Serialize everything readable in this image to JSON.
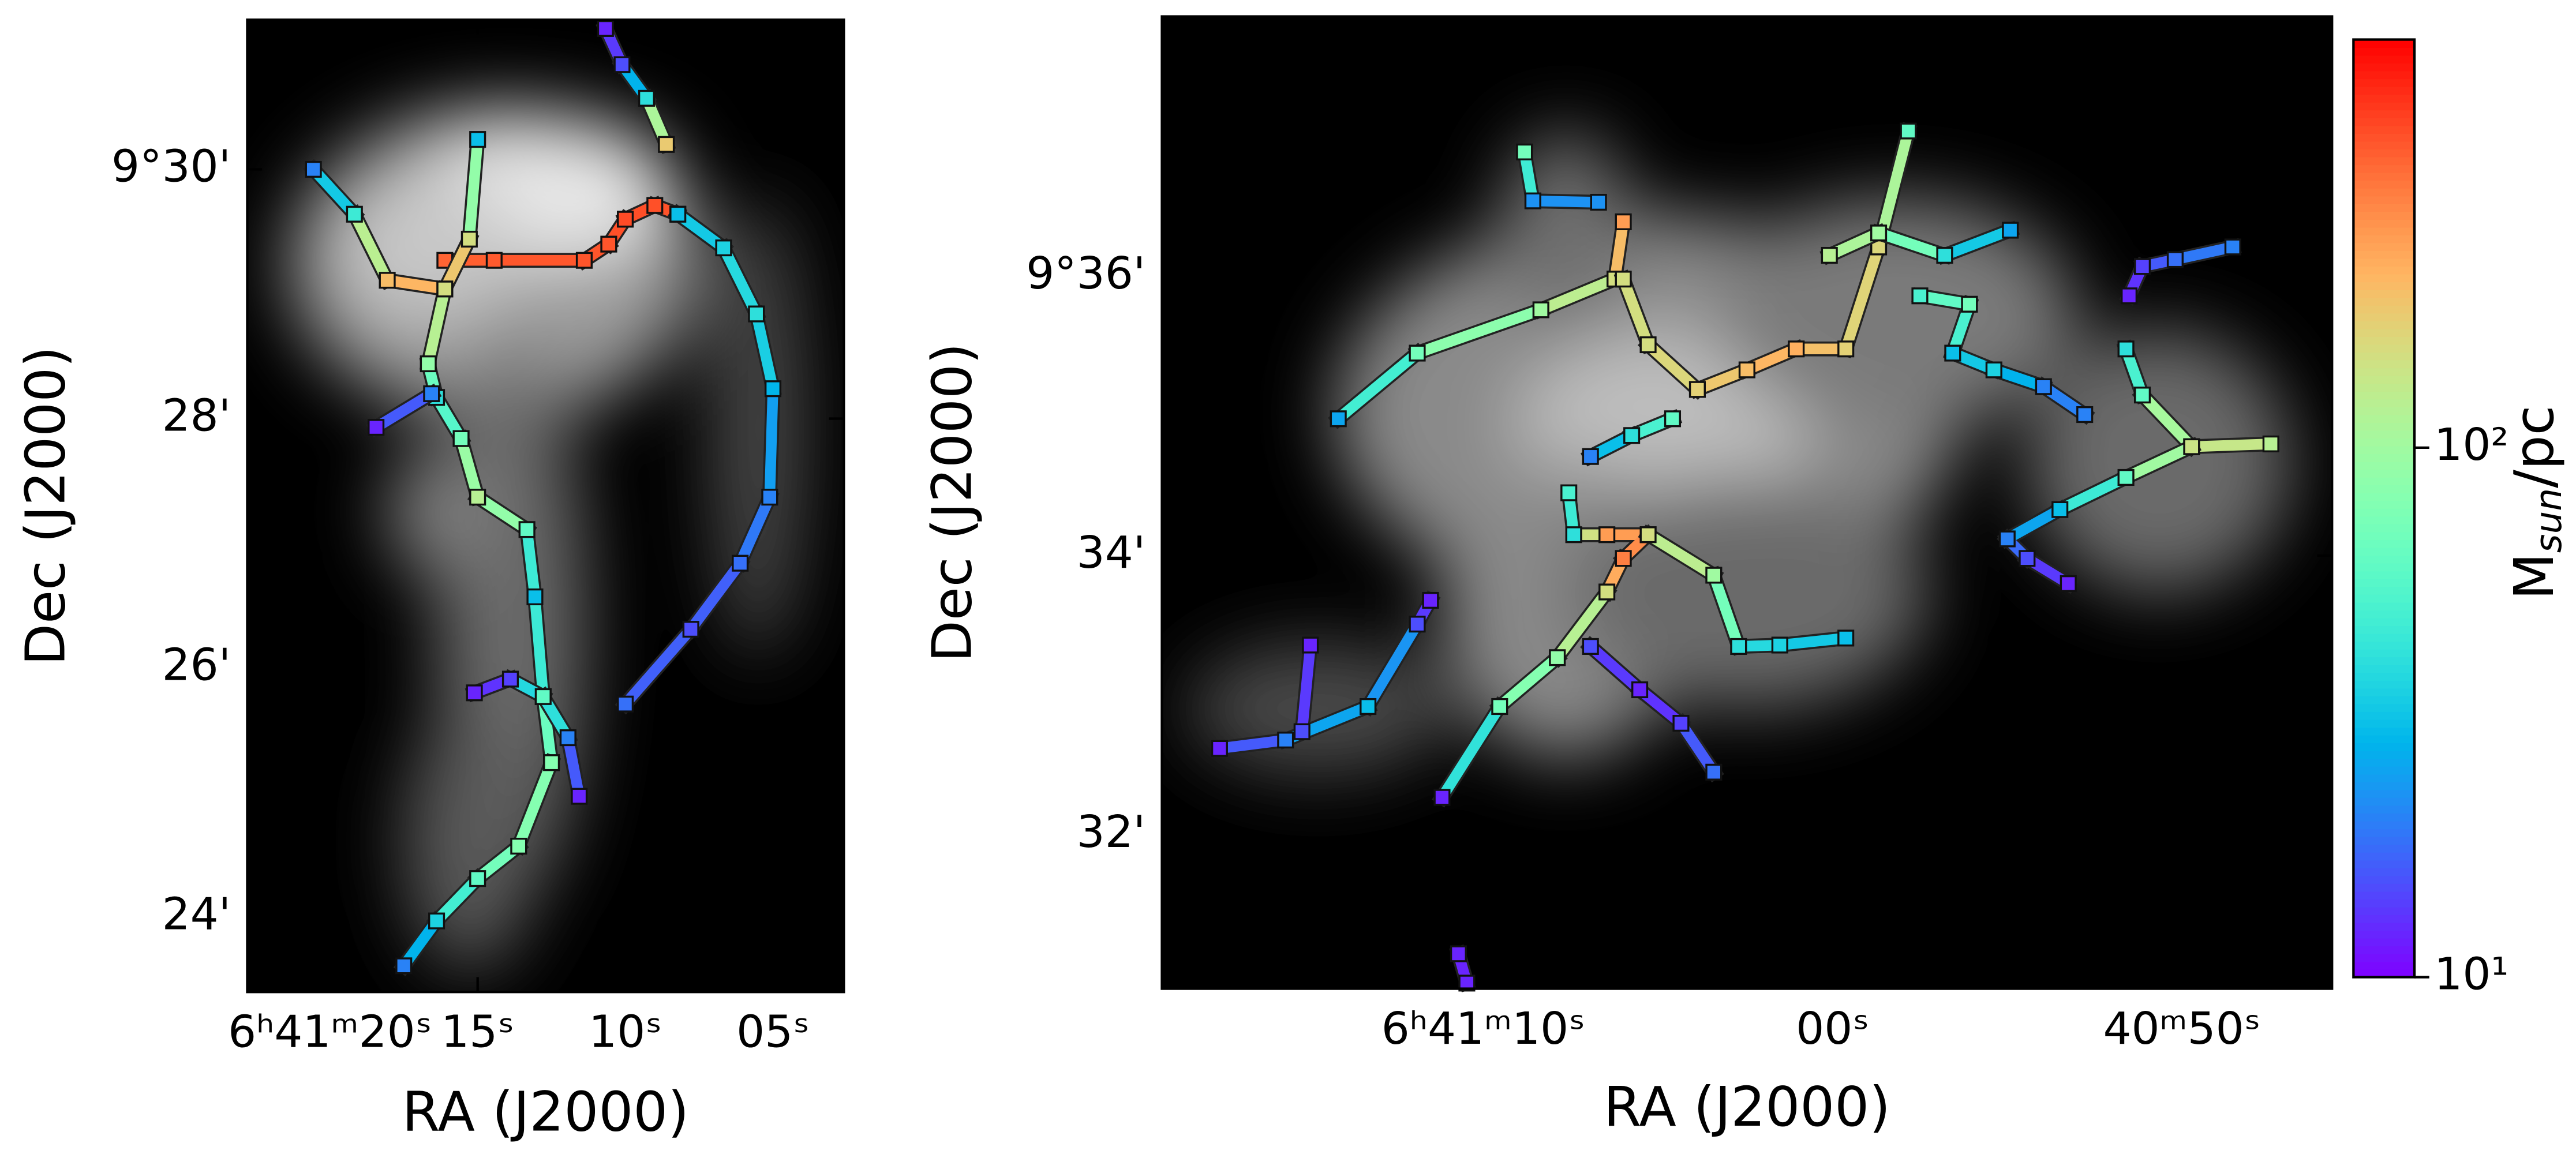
{
  "chart_data": [
    {
      "type": "scatter",
      "xlabel": "RA (J2000)",
      "ylabel": "Dec (J2000)",
      "xlim": [
        22.8,
        2.6
      ],
      "ylim": [
        23.4,
        31.2
      ],
      "xticks": [
        {
          "value": 20,
          "label": "6ʰ41ᵐ20ˢ"
        },
        {
          "value": 15,
          "label": "15ˢ"
        },
        {
          "value": 10,
          "label": "10ˢ"
        },
        {
          "value": 5,
          "label": "05ˢ"
        }
      ],
      "yticks": [
        {
          "value": 30,
          "label": "9°30'"
        },
        {
          "value": 28,
          "label": "28'"
        },
        {
          "value": 26,
          "label": "26'"
        },
        {
          "value": 24,
          "label": "24'"
        }
      ],
      "filaments": [
        {
          "x": [
            16.11,
            14.44,
            11.39,
            10.56,
            10.0,
            9.0,
            8.22
          ],
          "y": [
            29.27,
            29.27,
            29.27,
            29.4,
            29.6,
            29.71,
            29.64
          ],
          "values": [
            350,
            370,
            380,
            380,
            400,
            390,
            380
          ]
        },
        {
          "x": [
            10.67,
            10.11,
            9.28,
            8.61
          ],
          "y": [
            31.13,
            30.84,
            30.57,
            30.2
          ],
          "values": [
            12,
            15,
            40,
            180
          ]
        },
        {
          "x": [
            8.22,
            6.67,
            5.56,
            5.0,
            5.11,
            6.11,
            7.78,
            10.0
          ],
          "y": [
            29.64,
            29.37,
            28.84,
            28.24,
            27.37,
            26.84,
            26.31,
            25.71
          ],
          "values": [
            30,
            35,
            40,
            28,
            20,
            18,
            15,
            18
          ]
        },
        {
          "x": [
            20.56,
            19.17,
            18.06,
            16.11,
            15.28,
            15.0
          ],
          "y": [
            30.0,
            29.64,
            29.11,
            29.04,
            29.44,
            30.24
          ],
          "values": [
            20,
            45,
            200,
            220,
            150,
            30
          ]
        },
        {
          "x": [
            16.11,
            16.67,
            16.39,
            15.56,
            15.0,
            13.33,
            13.06,
            12.78,
            12.5
          ],
          "y": [
            29.04,
            28.44,
            28.17,
            27.84,
            27.37,
            27.11,
            26.57,
            25.77,
            25.24
          ],
          "values": [
            150,
            90,
            40,
            70,
            120,
            60,
            30,
            60,
            70
          ]
        },
        {
          "x": [
            18.44,
            16.56
          ],
          "y": [
            27.93,
            28.2
          ],
          "values": [
            12,
            20
          ]
        },
        {
          "x": [
            12.5,
            13.61,
            15.0,
            16.39,
            17.5
          ],
          "y": [
            25.24,
            24.57,
            24.31,
            23.97,
            23.61
          ],
          "values": [
            80,
            80,
            60,
            35,
            20
          ]
        },
        {
          "x": [
            15.11,
            13.89,
            12.78,
            11.94,
            11.56
          ],
          "y": [
            25.8,
            25.91,
            25.77,
            25.44,
            24.97
          ],
          "values": [
            12,
            14,
            60,
            20,
            12
          ]
        }
      ]
    },
    {
      "type": "scatter",
      "xlabel": "RA (J2000)",
      "ylabel": "Dec (J2000)",
      "xlim": [
        19.2,
        -14.3
      ],
      "ylim": [
        30.9,
        37.86
      ],
      "xticks": [
        {
          "value": 10,
          "label": "6ʰ41ᵐ10ˢ"
        },
        {
          "value": 0,
          "label": "00ˢ"
        },
        {
          "value": -10,
          "label": "40ᵐ50ˢ"
        }
      ],
      "yticks": [
        {
          "value": 36,
          "label": "9°36'"
        },
        {
          "value": 34,
          "label": "34'"
        },
        {
          "value": 32,
          "label": "32'"
        }
      ],
      "filaments": [
        {
          "x": [
            14.15,
            11.89,
            8.35,
            6.23,
            5.99
          ],
          "y": [
            34.98,
            35.45,
            35.76,
            35.98,
            36.39
          ],
          "values": [
            25,
            70,
            100,
            150,
            250
          ]
        },
        {
          "x": [
            8.82,
            8.58,
            6.7
          ],
          "y": [
            36.89,
            36.54,
            36.53
          ],
          "values": [
            70,
            22,
            22
          ]
        },
        {
          "x": [
            5.99,
            5.28,
            3.87,
            2.45,
            1.04,
            -0.38,
            -1.32,
            -2.17
          ],
          "y": [
            35.98,
            35.51,
            35.19,
            35.33,
            35.48,
            35.48,
            36.21,
            37.04
          ],
          "values": [
            150,
            150,
            170,
            200,
            220,
            170,
            160,
            60
          ]
        },
        {
          "x": [
            0.09,
            -1.32,
            -3.21,
            -5.09
          ],
          "y": [
            36.15,
            36.31,
            36.15,
            36.33
          ],
          "values": [
            120,
            100,
            40,
            25
          ]
        },
        {
          "x": [
            -2.5,
            -3.92,
            -3.44,
            -4.62,
            -6.04,
            -7.22
          ],
          "y": [
            35.86,
            35.8,
            35.45,
            35.33,
            35.21,
            35.01
          ],
          "values": [
            50,
            70,
            30,
            35,
            20,
            20
          ]
        },
        {
          "x": [
            4.58,
            5.75,
            6.93
          ],
          "y": [
            34.98,
            34.86,
            34.71
          ],
          "values": [
            60,
            40,
            20
          ]
        },
        {
          "x": [
            17.55,
            15.66,
            13.3,
            11.89,
            11.51
          ],
          "y": [
            32.62,
            32.68,
            32.92,
            33.51,
            33.68
          ],
          "values": [
            12,
            20,
            30,
            15,
            12
          ]
        },
        {
          "x": [
            14.95,
            15.19
          ],
          "y": [
            33.36,
            32.74
          ],
          "values": [
            12,
            15
          ]
        },
        {
          "x": [
            7.55,
            7.41,
            6.46,
            5.28,
            5.99,
            6.46,
            7.88,
            9.53,
            11.18
          ],
          "y": [
            34.45,
            34.15,
            34.15,
            34.15,
            33.98,
            33.74,
            33.27,
            32.92,
            32.27
          ],
          "values": [
            50,
            40,
            250,
            250,
            300,
            150,
            90,
            70,
            12
          ]
        },
        {
          "x": [
            5.28,
            3.4,
            2.69,
            1.51,
            -0.38
          ],
          "y": [
            34.15,
            33.86,
            33.35,
            33.36,
            33.41
          ],
          "values": [
            150,
            100,
            40,
            35,
            30
          ]
        },
        {
          "x": [
            6.93,
            5.52,
            4.34,
            3.4
          ],
          "y": [
            33.35,
            33.04,
            32.8,
            32.45
          ],
          "values": [
            15,
            12,
            14,
            18
          ]
        },
        {
          "x": [
            -8.4,
            -8.87,
            -10.28,
            -12.55
          ],
          "y": [
            35.48,
            35.15,
            34.78,
            34.8
          ],
          "values": [
            40,
            60,
            150,
            120
          ]
        },
        {
          "x": [
            -10.28,
            -8.4,
            -6.51,
            -5.0,
            -5.57,
            -6.75
          ],
          "y": [
            34.78,
            34.56,
            34.33,
            34.12,
            33.98,
            33.8
          ],
          "values": [
            140,
            60,
            30,
            20,
            15,
            12
          ]
        },
        {
          "x": [
            -8.49,
            -8.87,
            -9.81,
            -11.46
          ],
          "y": [
            35.86,
            36.07,
            36.12,
            36.21
          ],
          "values": [
            12,
            14,
            18,
            20
          ]
        },
        {
          "x": [
            10.71,
            10.47
          ],
          "y": [
            31.15,
            30.94
          ],
          "values": [
            12,
            12
          ]
        }
      ],
      "colorbar": {
        "label": [
          "M",
          "sun",
          "/pc"
        ],
        "scale": "log",
        "cmap": "rainbow",
        "lim": [
          10,
          590
        ],
        "ticks": [
          {
            "value": 10,
            "label": "10¹"
          },
          {
            "value": 100,
            "label": "10²"
          }
        ]
      }
    }
  ]
}
